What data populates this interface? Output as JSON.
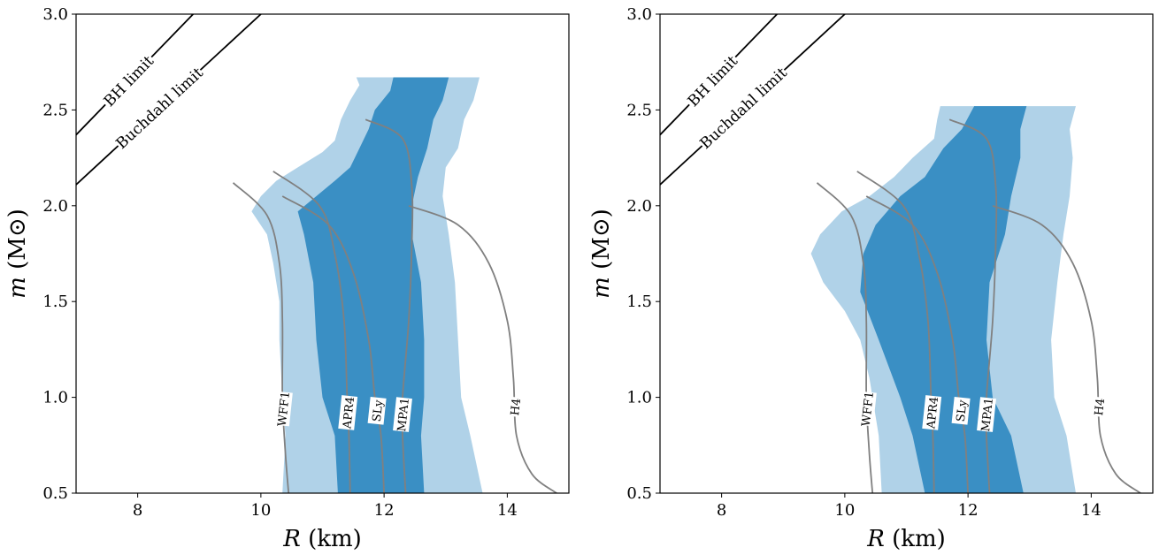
{
  "chart_data": [
    {
      "type": "area",
      "xlabel_var": "R",
      "xlabel_unit": "(km)",
      "ylabel_var": "m",
      "ylabel_unit": "(M⊙)",
      "xlim": [
        7,
        15
      ],
      "ylim": [
        0.5,
        3.0
      ],
      "xticks": [
        "8",
        "10",
        "12",
        "14"
      ],
      "yticks": [
        "0.5",
        "1.0",
        "1.5",
        "2.0",
        "2.5",
        "3.0"
      ],
      "bands": {
        "outer": {
          "color": "#b0d2e8",
          "left": [
            [
              10.35,
              0.5
            ],
            [
              10.4,
              0.8
            ],
            [
              10.35,
              1.0
            ],
            [
              10.3,
              1.3
            ],
            [
              10.3,
              1.5
            ],
            [
              10.2,
              1.7
            ],
            [
              10.1,
              1.85
            ],
            [
              9.85,
              1.97
            ],
            [
              10.0,
              2.05
            ],
            [
              10.25,
              2.13
            ],
            [
              10.6,
              2.2
            ],
            [
              11.0,
              2.28
            ],
            [
              11.2,
              2.34
            ],
            [
              11.3,
              2.45
            ],
            [
              11.45,
              2.55
            ],
            [
              11.6,
              2.63
            ],
            [
              11.55,
              2.67
            ]
          ],
          "right": [
            [
              13.6,
              0.5
            ],
            [
              13.4,
              0.8
            ],
            [
              13.25,
              1.0
            ],
            [
              13.2,
              1.3
            ],
            [
              13.15,
              1.6
            ],
            [
              13.05,
              1.85
            ],
            [
              12.95,
              2.05
            ],
            [
              13.0,
              2.2
            ],
            [
              13.2,
              2.3
            ],
            [
              13.3,
              2.45
            ],
            [
              13.45,
              2.55
            ],
            [
              13.55,
              2.67
            ]
          ]
        },
        "inner": {
          "color": "#3a8fc4",
          "left": [
            [
              11.25,
              0.5
            ],
            [
              11.2,
              0.8
            ],
            [
              11.0,
              1.0
            ],
            [
              10.9,
              1.3
            ],
            [
              10.85,
              1.6
            ],
            [
              10.7,
              1.85
            ],
            [
              10.6,
              1.97
            ],
            [
              10.9,
              2.05
            ],
            [
              11.2,
              2.13
            ],
            [
              11.45,
              2.2
            ],
            [
              11.6,
              2.3
            ],
            [
              11.75,
              2.4
            ],
            [
              11.85,
              2.5
            ],
            [
              12.1,
              2.6
            ],
            [
              12.15,
              2.67
            ]
          ],
          "right": [
            [
              12.65,
              0.5
            ],
            [
              12.6,
              0.8
            ],
            [
              12.65,
              1.0
            ],
            [
              12.65,
              1.3
            ],
            [
              12.6,
              1.6
            ],
            [
              12.45,
              1.85
            ],
            [
              12.45,
              2.0
            ],
            [
              12.55,
              2.15
            ],
            [
              12.7,
              2.3
            ],
            [
              12.8,
              2.45
            ],
            [
              12.95,
              2.55
            ],
            [
              13.05,
              2.67
            ]
          ]
        }
      },
      "eos_curves": [
        {
          "name": "WFF1",
          "points": [
            [
              10.45,
              0.5
            ],
            [
              10.4,
              0.7
            ],
            [
              10.35,
              1.0
            ],
            [
              10.35,
              1.4
            ],
            [
              10.3,
              1.7
            ],
            [
              10.1,
              1.95
            ],
            [
              9.55,
              2.12
            ]
          ],
          "label_y": 0.94
        },
        {
          "name": "APR4",
          "points": [
            [
              11.45,
              0.5
            ],
            [
              11.43,
              0.8
            ],
            [
              11.4,
              1.0
            ],
            [
              11.35,
              1.4
            ],
            [
              11.2,
              1.75
            ],
            [
              10.95,
              2.0
            ],
            [
              10.2,
              2.18
            ]
          ],
          "label_y": 0.92
        },
        {
          "name": "SLy",
          "points": [
            [
              12.0,
              0.5
            ],
            [
              11.95,
              0.8
            ],
            [
              11.85,
              1.0
            ],
            [
              11.75,
              1.3
            ],
            [
              11.5,
              1.65
            ],
            [
              11.1,
              1.9
            ],
            [
              10.35,
              2.05
            ]
          ],
          "label_y": 0.93
        },
        {
          "name": "MPA1",
          "points": [
            [
              12.35,
              0.5
            ],
            [
              12.3,
              0.8
            ],
            [
              12.3,
              1.0
            ],
            [
              12.4,
              1.4
            ],
            [
              12.45,
              1.8
            ],
            [
              12.45,
              2.1
            ],
            [
              12.3,
              2.35
            ],
            [
              11.7,
              2.45
            ]
          ],
          "label_y": 0.91
        },
        {
          "name": "H4",
          "points": [
            [
              14.8,
              0.5
            ],
            [
              14.4,
              0.6
            ],
            [
              14.15,
              0.8
            ],
            [
              14.1,
              1.1
            ],
            [
              14.0,
              1.4
            ],
            [
              13.7,
              1.7
            ],
            [
              13.2,
              1.9
            ],
            [
              12.4,
              2.0
            ]
          ],
          "label_y": 0.95
        }
      ],
      "limits": [
        {
          "name": "BH limit",
          "points": [
            [
              7.0,
              2.37
            ],
            [
              8.9,
              3.0
            ]
          ],
          "label_x": 7.85
        },
        {
          "name": "Buchdahl limit",
          "points": [
            [
              7.0,
              2.11
            ],
            [
              10.0,
              3.0
            ]
          ],
          "label_x": 8.35
        }
      ]
    },
    {
      "type": "area",
      "xlabel_var": "R",
      "xlabel_unit": "(km)",
      "ylabel_var": "m",
      "ylabel_unit": "(M⊙)",
      "xlim": [
        7,
        15
      ],
      "ylim": [
        0.5,
        3.0
      ],
      "xticks": [
        "8",
        "10",
        "12",
        "14"
      ],
      "yticks": [
        "0.5",
        "1.0",
        "1.5",
        "2.0",
        "2.5",
        "3.0"
      ],
      "bands": {
        "outer": {
          "color": "#b0d2e8",
          "left": [
            [
              10.6,
              0.5
            ],
            [
              10.55,
              0.8
            ],
            [
              10.4,
              1.1
            ],
            [
              10.25,
              1.3
            ],
            [
              10.0,
              1.45
            ],
            [
              9.65,
              1.6
            ],
            [
              9.45,
              1.75
            ],
            [
              9.6,
              1.85
            ],
            [
              9.95,
              1.97
            ],
            [
              10.4,
              2.05
            ],
            [
              10.8,
              2.15
            ],
            [
              11.1,
              2.25
            ],
            [
              11.45,
              2.35
            ],
            [
              11.5,
              2.45
            ],
            [
              11.55,
              2.52
            ]
          ],
          "right": [
            [
              13.75,
              0.5
            ],
            [
              13.6,
              0.8
            ],
            [
              13.4,
              1.0
            ],
            [
              13.35,
              1.3
            ],
            [
              13.45,
              1.6
            ],
            [
              13.55,
              1.85
            ],
            [
              13.65,
              2.05
            ],
            [
              13.7,
              2.25
            ],
            [
              13.65,
              2.4
            ],
            [
              13.75,
              2.52
            ]
          ]
        },
        "inner": {
          "color": "#3a8fc4",
          "left": [
            [
              11.3,
              0.5
            ],
            [
              11.1,
              0.8
            ],
            [
              10.9,
              1.0
            ],
            [
              10.55,
              1.3
            ],
            [
              10.25,
              1.55
            ],
            [
              10.3,
              1.75
            ],
            [
              10.5,
              1.9
            ],
            [
              10.9,
              2.05
            ],
            [
              11.3,
              2.15
            ],
            [
              11.6,
              2.3
            ],
            [
              11.9,
              2.4
            ],
            [
              12.1,
              2.52
            ]
          ],
          "right": [
            [
              12.9,
              0.5
            ],
            [
              12.7,
              0.8
            ],
            [
              12.4,
              1.0
            ],
            [
              12.3,
              1.3
            ],
            [
              12.35,
              1.6
            ],
            [
              12.6,
              1.85
            ],
            [
              12.7,
              2.05
            ],
            [
              12.85,
              2.25
            ],
            [
              12.85,
              2.4
            ],
            [
              12.95,
              2.52
            ]
          ]
        }
      },
      "eos_curves": [
        {
          "name": "WFF1",
          "points": [
            [
              10.45,
              0.5
            ],
            [
              10.4,
              0.7
            ],
            [
              10.35,
              1.0
            ],
            [
              10.35,
              1.4
            ],
            [
              10.3,
              1.7
            ],
            [
              10.1,
              1.95
            ],
            [
              9.55,
              2.12
            ]
          ],
          "label_y": 0.94
        },
        {
          "name": "APR4",
          "points": [
            [
              11.45,
              0.5
            ],
            [
              11.43,
              0.8
            ],
            [
              11.4,
              1.0
            ],
            [
              11.35,
              1.4
            ],
            [
              11.2,
              1.75
            ],
            [
              10.95,
              2.0
            ],
            [
              10.2,
              2.18
            ]
          ],
          "label_y": 0.92
        },
        {
          "name": "SLy",
          "points": [
            [
              12.0,
              0.5
            ],
            [
              11.95,
              0.8
            ],
            [
              11.85,
              1.0
            ],
            [
              11.75,
              1.3
            ],
            [
              11.5,
              1.65
            ],
            [
              11.1,
              1.9
            ],
            [
              10.35,
              2.05
            ]
          ],
          "label_y": 0.93
        },
        {
          "name": "MPA1",
          "points": [
            [
              12.35,
              0.5
            ],
            [
              12.3,
              0.8
            ],
            [
              12.3,
              1.0
            ],
            [
              12.4,
              1.4
            ],
            [
              12.45,
              1.8
            ],
            [
              12.45,
              2.1
            ],
            [
              12.3,
              2.35
            ],
            [
              11.7,
              2.45
            ]
          ],
          "label_y": 0.91
        },
        {
          "name": "H4",
          "points": [
            [
              14.8,
              0.5
            ],
            [
              14.4,
              0.6
            ],
            [
              14.15,
              0.8
            ],
            [
              14.1,
              1.1
            ],
            [
              14.0,
              1.4
            ],
            [
              13.7,
              1.7
            ],
            [
              13.2,
              1.9
            ],
            [
              12.4,
              2.0
            ]
          ],
          "label_y": 0.95
        }
      ],
      "limits": [
        {
          "name": "BH limit",
          "points": [
            [
              7.0,
              2.37
            ],
            [
              8.9,
              3.0
            ]
          ],
          "label_x": 7.85
        },
        {
          "name": "Buchdahl limit",
          "points": [
            [
              7.0,
              2.11
            ],
            [
              10.0,
              3.0
            ]
          ],
          "label_x": 8.35
        }
      ]
    }
  ]
}
